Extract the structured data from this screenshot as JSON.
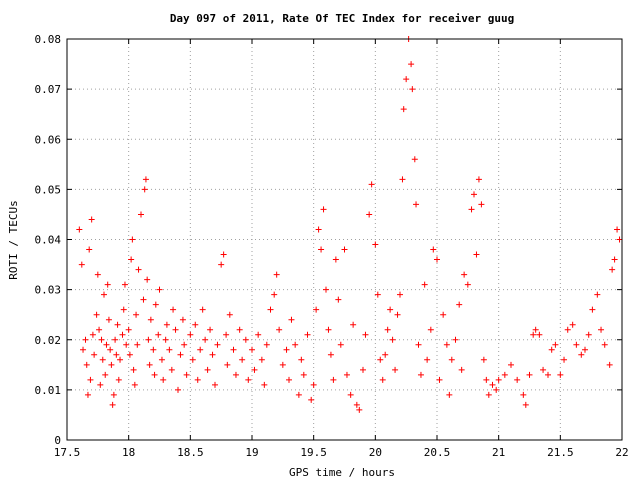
{
  "chart_data": {
    "type": "scatter",
    "title": "Day 097 of 2011, Rate Of TEC Index for receiver guug",
    "xlabel": "GPS time / hours",
    "ylabel": "ROTI / TECUs",
    "xlim": [
      17.5,
      22
    ],
    "ylim": [
      0,
      0.08
    ],
    "x_ticks": [
      "17.5",
      "18",
      "18.5",
      "19",
      "19.5",
      "20",
      "20.5",
      "21",
      "21.5",
      "22"
    ],
    "y_ticks": [
      "0",
      "0.01",
      "0.02",
      "0.03",
      "0.04",
      "0.05",
      "0.06",
      "0.07",
      "0.08"
    ],
    "grid": true,
    "marker": "+",
    "color": "#ff0000",
    "series": [
      {
        "points": [
          [
            17.6,
            0.042
          ],
          [
            17.62,
            0.035
          ],
          [
            17.63,
            0.018
          ],
          [
            17.65,
            0.02
          ],
          [
            17.66,
            0.015
          ],
          [
            17.67,
            0.009
          ],
          [
            17.68,
            0.038
          ],
          [
            17.69,
            0.012
          ],
          [
            17.7,
            0.044
          ],
          [
            17.71,
            0.021
          ],
          [
            17.72,
            0.017
          ],
          [
            17.74,
            0.025
          ],
          [
            17.75,
            0.033
          ],
          [
            17.76,
            0.022
          ],
          [
            17.77,
            0.011
          ],
          [
            17.78,
            0.02
          ],
          [
            17.79,
            0.016
          ],
          [
            17.8,
            0.029
          ],
          [
            17.81,
            0.013
          ],
          [
            17.82,
            0.019
          ],
          [
            17.83,
            0.031
          ],
          [
            17.84,
            0.024
          ],
          [
            17.85,
            0.018
          ],
          [
            17.86,
            0.015
          ],
          [
            17.87,
            0.007
          ],
          [
            17.88,
            0.009
          ],
          [
            17.89,
            0.02
          ],
          [
            17.9,
            0.017
          ],
          [
            17.91,
            0.023
          ],
          [
            17.92,
            0.012
          ],
          [
            17.93,
            0.016
          ],
          [
            17.95,
            0.021
          ],
          [
            17.96,
            0.026
          ],
          [
            17.97,
            0.031
          ],
          [
            17.98,
            0.019
          ],
          [
            18.0,
            0.022
          ],
          [
            18.01,
            0.017
          ],
          [
            18.02,
            0.036
          ],
          [
            18.03,
            0.04
          ],
          [
            18.04,
            0.014
          ],
          [
            18.05,
            0.011
          ],
          [
            18.06,
            0.025
          ],
          [
            18.07,
            0.019
          ],
          [
            18.08,
            0.034
          ],
          [
            18.1,
            0.045
          ],
          [
            18.12,
            0.028
          ],
          [
            18.13,
            0.05
          ],
          [
            18.14,
            0.052
          ],
          [
            18.15,
            0.032
          ],
          [
            18.16,
            0.02
          ],
          [
            18.17,
            0.015
          ],
          [
            18.18,
            0.024
          ],
          [
            18.2,
            0.018
          ],
          [
            18.21,
            0.013
          ],
          [
            18.22,
            0.027
          ],
          [
            18.24,
            0.021
          ],
          [
            18.25,
            0.03
          ],
          [
            18.27,
            0.016
          ],
          [
            18.28,
            0.012
          ],
          [
            18.3,
            0.02
          ],
          [
            18.31,
            0.023
          ],
          [
            18.33,
            0.018
          ],
          [
            18.35,
            0.014
          ],
          [
            18.36,
            0.026
          ],
          [
            18.38,
            0.022
          ],
          [
            18.4,
            0.01
          ],
          [
            18.42,
            0.017
          ],
          [
            18.44,
            0.024
          ],
          [
            18.45,
            0.019
          ],
          [
            18.47,
            0.013
          ],
          [
            18.5,
            0.021
          ],
          [
            18.52,
            0.016
          ],
          [
            18.54,
            0.023
          ],
          [
            18.56,
            0.012
          ],
          [
            18.58,
            0.018
          ],
          [
            18.6,
            0.026
          ],
          [
            18.62,
            0.02
          ],
          [
            18.64,
            0.014
          ],
          [
            18.66,
            0.022
          ],
          [
            18.68,
            0.017
          ],
          [
            18.7,
            0.011
          ],
          [
            18.72,
            0.019
          ],
          [
            18.75,
            0.035
          ],
          [
            18.77,
            0.037
          ],
          [
            18.79,
            0.021
          ],
          [
            18.8,
            0.015
          ],
          [
            18.82,
            0.025
          ],
          [
            18.85,
            0.018
          ],
          [
            18.87,
            0.013
          ],
          [
            18.9,
            0.022
          ],
          [
            18.92,
            0.016
          ],
          [
            18.95,
            0.02
          ],
          [
            18.97,
            0.012
          ],
          [
            19.0,
            0.018
          ],
          [
            19.02,
            0.014
          ],
          [
            19.05,
            0.021
          ],
          [
            19.08,
            0.016
          ],
          [
            19.1,
            0.011
          ],
          [
            19.12,
            0.019
          ],
          [
            19.15,
            0.026
          ],
          [
            19.18,
            0.029
          ],
          [
            19.2,
            0.033
          ],
          [
            19.22,
            0.022
          ],
          [
            19.25,
            0.015
          ],
          [
            19.28,
            0.018
          ],
          [
            19.3,
            0.012
          ],
          [
            19.32,
            0.024
          ],
          [
            19.35,
            0.019
          ],
          [
            19.38,
            0.009
          ],
          [
            19.4,
            0.016
          ],
          [
            19.42,
            0.013
          ],
          [
            19.45,
            0.021
          ],
          [
            19.48,
            0.008
          ],
          [
            19.5,
            0.011
          ],
          [
            19.52,
            0.026
          ],
          [
            19.54,
            0.042
          ],
          [
            19.56,
            0.038
          ],
          [
            19.58,
            0.046
          ],
          [
            19.6,
            0.03
          ],
          [
            19.62,
            0.022
          ],
          [
            19.64,
            0.017
          ],
          [
            19.66,
            0.012
          ],
          [
            19.68,
            0.036
          ],
          [
            19.7,
            0.028
          ],
          [
            19.72,
            0.019
          ],
          [
            19.75,
            0.038
          ],
          [
            19.77,
            0.013
          ],
          [
            19.8,
            0.009
          ],
          [
            19.82,
            0.023
          ],
          [
            19.85,
            0.007
          ],
          [
            19.87,
            0.006
          ],
          [
            19.9,
            0.014
          ],
          [
            19.92,
            0.021
          ],
          [
            19.95,
            0.045
          ],
          [
            19.97,
            0.051
          ],
          [
            20.0,
            0.039
          ],
          [
            20.02,
            0.029
          ],
          [
            20.04,
            0.016
          ],
          [
            20.06,
            0.012
          ],
          [
            20.08,
            0.017
          ],
          [
            20.1,
            0.022
          ],
          [
            20.12,
            0.026
          ],
          [
            20.14,
            0.02
          ],
          [
            20.16,
            0.014
          ],
          [
            20.18,
            0.025
          ],
          [
            20.2,
            0.029
          ],
          [
            20.22,
            0.052
          ],
          [
            20.23,
            0.066
          ],
          [
            20.25,
            0.072
          ],
          [
            20.27,
            0.08
          ],
          [
            20.29,
            0.075
          ],
          [
            20.3,
            0.07
          ],
          [
            20.32,
            0.056
          ],
          [
            20.33,
            0.047
          ],
          [
            20.35,
            0.019
          ],
          [
            20.37,
            0.013
          ],
          [
            20.4,
            0.031
          ],
          [
            20.42,
            0.016
          ],
          [
            20.45,
            0.022
          ],
          [
            20.47,
            0.038
          ],
          [
            20.5,
            0.036
          ],
          [
            20.52,
            0.012
          ],
          [
            20.55,
            0.025
          ],
          [
            20.58,
            0.019
          ],
          [
            20.6,
            0.009
          ],
          [
            20.62,
            0.016
          ],
          [
            20.65,
            0.02
          ],
          [
            20.68,
            0.027
          ],
          [
            20.7,
            0.014
          ],
          [
            20.72,
            0.033
          ],
          [
            20.75,
            0.031
          ],
          [
            20.78,
            0.046
          ],
          [
            20.8,
            0.049
          ],
          [
            20.82,
            0.037
          ],
          [
            20.84,
            0.052
          ],
          [
            20.86,
            0.047
          ],
          [
            20.88,
            0.016
          ],
          [
            20.9,
            0.012
          ],
          [
            20.92,
            0.009
          ],
          [
            20.95,
            0.011
          ],
          [
            20.98,
            0.01
          ],
          [
            21.0,
            0.012
          ],
          [
            21.05,
            0.013
          ],
          [
            21.1,
            0.015
          ],
          [
            21.15,
            0.012
          ],
          [
            21.2,
            0.009
          ],
          [
            21.22,
            0.007
          ],
          [
            21.25,
            0.013
          ],
          [
            21.28,
            0.021
          ],
          [
            21.3,
            0.022
          ],
          [
            21.33,
            0.021
          ],
          [
            21.36,
            0.014
          ],
          [
            21.4,
            0.013
          ],
          [
            21.43,
            0.018
          ],
          [
            21.46,
            0.019
          ],
          [
            21.5,
            0.013
          ],
          [
            21.53,
            0.016
          ],
          [
            21.56,
            0.022
          ],
          [
            21.6,
            0.023
          ],
          [
            21.63,
            0.019
          ],
          [
            21.67,
            0.017
          ],
          [
            21.7,
            0.018
          ],
          [
            21.73,
            0.021
          ],
          [
            21.76,
            0.026
          ],
          [
            21.8,
            0.029
          ],
          [
            21.83,
            0.022
          ],
          [
            21.86,
            0.019
          ],
          [
            21.9,
            0.015
          ],
          [
            21.92,
            0.034
          ],
          [
            21.94,
            0.036
          ],
          [
            21.96,
            0.042
          ],
          [
            21.98,
            0.04
          ]
        ]
      }
    ]
  }
}
